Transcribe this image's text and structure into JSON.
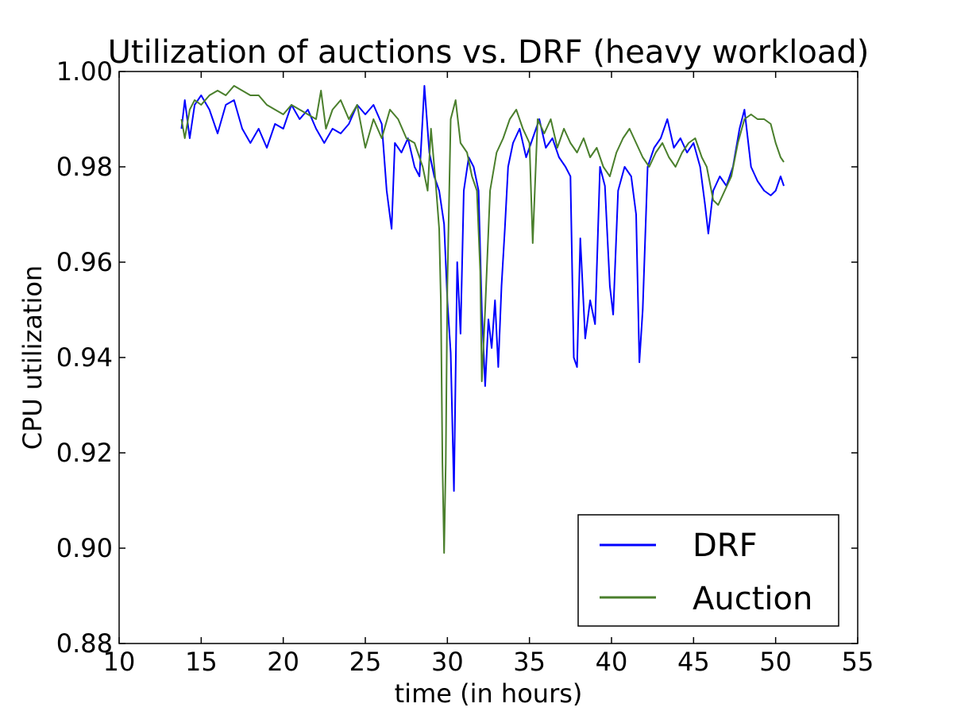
{
  "chart_data": {
    "type": "line",
    "title": "Utilization of auctions vs. DRF (heavy workload)",
    "xlabel": "time (in hours)",
    "ylabel": "CPU utilization",
    "xlim": [
      10,
      55
    ],
    "ylim": [
      0.88,
      1.0
    ],
    "xticks": [
      "10",
      "15",
      "20",
      "25",
      "30",
      "35",
      "40",
      "45",
      "50",
      "55"
    ],
    "yticks": [
      "0.88",
      "0.90",
      "0.92",
      "0.94",
      "0.96",
      "0.98",
      "1.00"
    ],
    "grid": false,
    "legend_position": "lower-right",
    "series": [
      {
        "name": "DRF",
        "color": "#0000ff",
        "points": [
          [
            13.8,
            0.988
          ],
          [
            14.0,
            0.994
          ],
          [
            14.3,
            0.986
          ],
          [
            14.6,
            0.993
          ],
          [
            15.0,
            0.995
          ],
          [
            15.5,
            0.992
          ],
          [
            16.0,
            0.987
          ],
          [
            16.5,
            0.993
          ],
          [
            17.0,
            0.994
          ],
          [
            17.5,
            0.988
          ],
          [
            18.0,
            0.985
          ],
          [
            18.5,
            0.988
          ],
          [
            19.0,
            0.984
          ],
          [
            19.5,
            0.989
          ],
          [
            20.0,
            0.988
          ],
          [
            20.5,
            0.993
          ],
          [
            21.0,
            0.99
          ],
          [
            21.5,
            0.992
          ],
          [
            22.0,
            0.988
          ],
          [
            22.5,
            0.985
          ],
          [
            23.0,
            0.988
          ],
          [
            23.5,
            0.987
          ],
          [
            24.0,
            0.989
          ],
          [
            24.5,
            0.993
          ],
          [
            25.0,
            0.991
          ],
          [
            25.5,
            0.993
          ],
          [
            26.0,
            0.989
          ],
          [
            26.3,
            0.975
          ],
          [
            26.6,
            0.967
          ],
          [
            26.8,
            0.985
          ],
          [
            27.2,
            0.983
          ],
          [
            27.6,
            0.986
          ],
          [
            28.0,
            0.98
          ],
          [
            28.3,
            0.978
          ],
          [
            28.6,
            0.997
          ],
          [
            28.9,
            0.983
          ],
          [
            29.2,
            0.978
          ],
          [
            29.5,
            0.975
          ],
          [
            29.8,
            0.968
          ],
          [
            30.0,
            0.952
          ],
          [
            30.2,
            0.941
          ],
          [
            30.4,
            0.912
          ],
          [
            30.6,
            0.96
          ],
          [
            30.8,
            0.945
          ],
          [
            31.0,
            0.975
          ],
          [
            31.3,
            0.982
          ],
          [
            31.6,
            0.98
          ],
          [
            31.9,
            0.975
          ],
          [
            32.1,
            0.95
          ],
          [
            32.3,
            0.934
          ],
          [
            32.5,
            0.948
          ],
          [
            32.7,
            0.942
          ],
          [
            32.9,
            0.952
          ],
          [
            33.1,
            0.938
          ],
          [
            33.3,
            0.955
          ],
          [
            33.5,
            0.967
          ],
          [
            33.7,
            0.98
          ],
          [
            34.0,
            0.985
          ],
          [
            34.4,
            0.988
          ],
          [
            34.8,
            0.982
          ],
          [
            35.2,
            0.986
          ],
          [
            35.6,
            0.99
          ],
          [
            36.0,
            0.984
          ],
          [
            36.4,
            0.986
          ],
          [
            36.8,
            0.982
          ],
          [
            37.2,
            0.98
          ],
          [
            37.5,
            0.978
          ],
          [
            37.7,
            0.94
          ],
          [
            37.9,
            0.938
          ],
          [
            38.1,
            0.965
          ],
          [
            38.4,
            0.944
          ],
          [
            38.7,
            0.952
          ],
          [
            39.0,
            0.947
          ],
          [
            39.3,
            0.98
          ],
          [
            39.6,
            0.976
          ],
          [
            39.9,
            0.955
          ],
          [
            40.1,
            0.949
          ],
          [
            40.4,
            0.975
          ],
          [
            40.8,
            0.98
          ],
          [
            41.2,
            0.978
          ],
          [
            41.5,
            0.97
          ],
          [
            41.7,
            0.939
          ],
          [
            41.9,
            0.95
          ],
          [
            42.2,
            0.98
          ],
          [
            42.6,
            0.984
          ],
          [
            43.0,
            0.986
          ],
          [
            43.4,
            0.99
          ],
          [
            43.8,
            0.984
          ],
          [
            44.2,
            0.986
          ],
          [
            44.6,
            0.983
          ],
          [
            45.0,
            0.985
          ],
          [
            45.4,
            0.98
          ],
          [
            45.7,
            0.972
          ],
          [
            45.9,
            0.966
          ],
          [
            46.2,
            0.975
          ],
          [
            46.6,
            0.978
          ],
          [
            47.0,
            0.976
          ],
          [
            47.4,
            0.98
          ],
          [
            47.8,
            0.988
          ],
          [
            48.1,
            0.992
          ],
          [
            48.5,
            0.98
          ],
          [
            48.9,
            0.977
          ],
          [
            49.3,
            0.975
          ],
          [
            49.7,
            0.974
          ],
          [
            50.0,
            0.975
          ],
          [
            50.3,
            0.978
          ],
          [
            50.5,
            0.976
          ]
        ]
      },
      {
        "name": "Auction",
        "color": "#4a7f2c",
        "points": [
          [
            13.8,
            0.99
          ],
          [
            14.0,
            0.986
          ],
          [
            14.3,
            0.992
          ],
          [
            14.6,
            0.994
          ],
          [
            15.0,
            0.993
          ],
          [
            15.5,
            0.995
          ],
          [
            16.0,
            0.996
          ],
          [
            16.5,
            0.995
          ],
          [
            17.0,
            0.997
          ],
          [
            17.5,
            0.996
          ],
          [
            18.0,
            0.995
          ],
          [
            18.5,
            0.995
          ],
          [
            19.0,
            0.993
          ],
          [
            19.5,
            0.992
          ],
          [
            20.0,
            0.991
          ],
          [
            20.5,
            0.993
          ],
          [
            21.0,
            0.992
          ],
          [
            21.5,
            0.991
          ],
          [
            22.0,
            0.99
          ],
          [
            22.3,
            0.996
          ],
          [
            22.6,
            0.988
          ],
          [
            23.0,
            0.992
          ],
          [
            23.5,
            0.994
          ],
          [
            24.0,
            0.99
          ],
          [
            24.5,
            0.993
          ],
          [
            25.0,
            0.984
          ],
          [
            25.5,
            0.99
          ],
          [
            26.0,
            0.986
          ],
          [
            26.5,
            0.992
          ],
          [
            27.0,
            0.99
          ],
          [
            27.5,
            0.986
          ],
          [
            28.0,
            0.985
          ],
          [
            28.5,
            0.98
          ],
          [
            28.8,
            0.975
          ],
          [
            29.0,
            0.988
          ],
          [
            29.3,
            0.976
          ],
          [
            29.5,
            0.967
          ],
          [
            29.6,
            0.952
          ],
          [
            29.7,
            0.918
          ],
          [
            29.8,
            0.899
          ],
          [
            29.9,
            0.918
          ],
          [
            30.0,
            0.955
          ],
          [
            30.2,
            0.99
          ],
          [
            30.5,
            0.994
          ],
          [
            30.8,
            0.985
          ],
          [
            31.2,
            0.983
          ],
          [
            31.5,
            0.978
          ],
          [
            31.8,
            0.975
          ],
          [
            32.0,
            0.958
          ],
          [
            32.1,
            0.935
          ],
          [
            32.3,
            0.95
          ],
          [
            32.6,
            0.975
          ],
          [
            33.0,
            0.983
          ],
          [
            33.4,
            0.986
          ],
          [
            33.8,
            0.99
          ],
          [
            34.2,
            0.992
          ],
          [
            34.6,
            0.988
          ],
          [
            35.0,
            0.985
          ],
          [
            35.2,
            0.964
          ],
          [
            35.5,
            0.99
          ],
          [
            35.9,
            0.987
          ],
          [
            36.3,
            0.99
          ],
          [
            36.7,
            0.984
          ],
          [
            37.1,
            0.988
          ],
          [
            37.5,
            0.985
          ],
          [
            37.9,
            0.983
          ],
          [
            38.3,
            0.986
          ],
          [
            38.7,
            0.982
          ],
          [
            39.1,
            0.984
          ],
          [
            39.5,
            0.98
          ],
          [
            39.9,
            0.978
          ],
          [
            40.3,
            0.983
          ],
          [
            40.7,
            0.986
          ],
          [
            41.1,
            0.988
          ],
          [
            41.5,
            0.985
          ],
          [
            41.9,
            0.982
          ],
          [
            42.3,
            0.98
          ],
          [
            42.7,
            0.983
          ],
          [
            43.1,
            0.985
          ],
          [
            43.5,
            0.982
          ],
          [
            43.9,
            0.98
          ],
          [
            44.3,
            0.983
          ],
          [
            44.7,
            0.985
          ],
          [
            45.1,
            0.986
          ],
          [
            45.5,
            0.982
          ],
          [
            45.8,
            0.98
          ],
          [
            46.2,
            0.973
          ],
          [
            46.5,
            0.972
          ],
          [
            46.9,
            0.975
          ],
          [
            47.3,
            0.978
          ],
          [
            47.7,
            0.985
          ],
          [
            48.1,
            0.99
          ],
          [
            48.5,
            0.991
          ],
          [
            48.9,
            0.99
          ],
          [
            49.3,
            0.99
          ],
          [
            49.7,
            0.989
          ],
          [
            50.0,
            0.985
          ],
          [
            50.3,
            0.982
          ],
          [
            50.5,
            0.981
          ]
        ]
      }
    ]
  }
}
